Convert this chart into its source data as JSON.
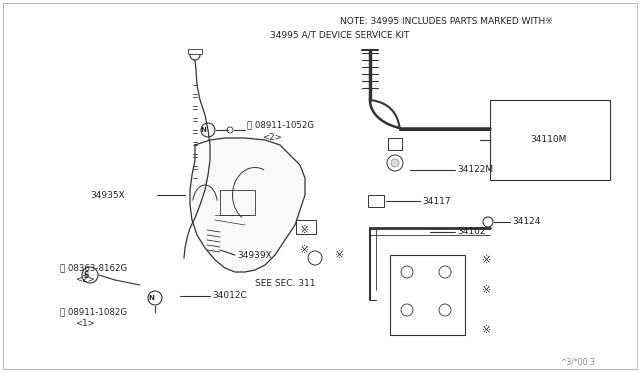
{
  "bg_color": "#ffffff",
  "line_color": "#333333",
  "text_color": "#222222",
  "note_line1": "NOTE: 34995 INCLUDES PARTS MARKED WITH※",
  "note_line2": "34995 A/T DEVICE SERVICE KIT",
  "title_bottom": "^3/*00.3",
  "figsize": [
    6.4,
    3.72
  ],
  "dpi": 100
}
